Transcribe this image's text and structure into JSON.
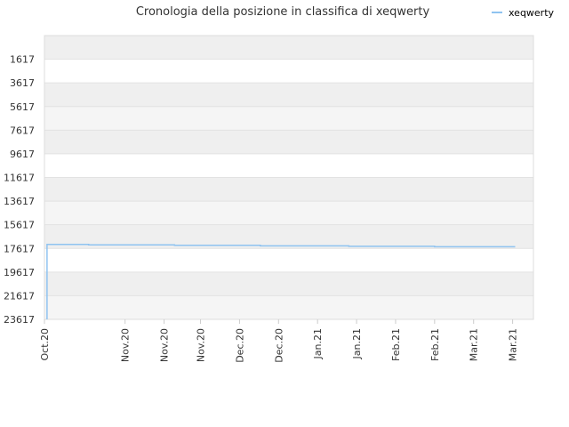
{
  "chart_data": {
    "type": "line",
    "title": "Cronologia della posizione in classifica di xeqwerty",
    "y_axis": {
      "reversed": true,
      "range": [
        -383,
        23617
      ],
      "ticks": [
        1617,
        3617,
        5617,
        7617,
        9617,
        11617,
        13617,
        15617,
        17617,
        19617,
        21617,
        23617
      ],
      "tick_labels": [
        "1617",
        "3617",
        "5617",
        "7617",
        "9617",
        "11617",
        "13617",
        "15617",
        "17617",
        "19617",
        "21617",
        "23617"
      ]
    },
    "x_axis": {
      "tick_labels": [
        "Oct.20",
        "Nov.20",
        "Nov.20",
        "Nov.20",
        "Dec.20",
        "Dec.20",
        "Jan.21",
        "Jan.21",
        "Feb.21",
        "Feb.21",
        "Mar.21",
        "Mar.21"
      ],
      "tick_dates": [
        "2020-10-01",
        "2020-11-01",
        "2020-11-16",
        "2020-11-30",
        "2020-12-15",
        "2020-12-30",
        "2021-01-14",
        "2021-01-29",
        "2021-02-13",
        "2021-02-28",
        "2021-03-15",
        "2021-03-30"
      ],
      "range": [
        "2020-10-01",
        "2021-04-07"
      ]
    },
    "grid": true,
    "legend": {
      "position": "top-right"
    },
    "series": [
      {
        "name": "xeqwerty",
        "color": "#8fc3f0",
        "points": [
          {
            "x": "2020-10-02",
            "y": 23617
          },
          {
            "x": "2020-10-02",
            "y": 17280
          },
          {
            "x": "2020-10-18",
            "y": 17280
          },
          {
            "x": "2020-10-18",
            "y": 17320
          },
          {
            "x": "2020-11-20",
            "y": 17320
          },
          {
            "x": "2020-11-20",
            "y": 17360
          },
          {
            "x": "2020-12-23",
            "y": 17360
          },
          {
            "x": "2020-12-23",
            "y": 17400
          },
          {
            "x": "2021-01-26",
            "y": 17400
          },
          {
            "x": "2021-01-26",
            "y": 17440
          },
          {
            "x": "2021-02-28",
            "y": 17440
          },
          {
            "x": "2021-02-28",
            "y": 17480
          },
          {
            "x": "2021-03-31",
            "y": 17480
          }
        ]
      }
    ]
  }
}
